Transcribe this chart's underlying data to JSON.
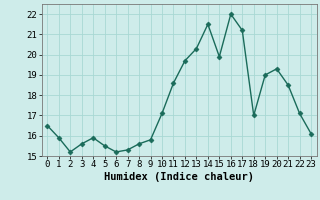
{
  "x": [
    0,
    1,
    2,
    3,
    4,
    5,
    6,
    7,
    8,
    9,
    10,
    11,
    12,
    13,
    14,
    15,
    16,
    17,
    18,
    19,
    20,
    21,
    22,
    23
  ],
  "y": [
    16.5,
    15.9,
    15.2,
    15.6,
    15.9,
    15.5,
    15.2,
    15.3,
    15.6,
    15.8,
    17.1,
    18.6,
    19.7,
    20.3,
    21.5,
    19.9,
    22.0,
    21.2,
    17.0,
    19.0,
    19.3,
    18.5,
    17.1,
    16.1
  ],
  "line_color": "#1a6b5a",
  "marker": "D",
  "marker_size": 2.5,
  "background_color": "#ceecea",
  "grid_color": "#a8d8d4",
  "xlabel": "Humidex (Indice chaleur)",
  "ylim": [
    15,
    22.5
  ],
  "yticks": [
    15,
    16,
    17,
    18,
    19,
    20,
    21,
    22
  ],
  "xticks": [
    0,
    1,
    2,
    3,
    4,
    5,
    6,
    7,
    8,
    9,
    10,
    11,
    12,
    13,
    14,
    15,
    16,
    17,
    18,
    19,
    20,
    21,
    22,
    23
  ],
  "xlabel_fontsize": 7.5,
  "tick_fontsize": 6.5,
  "line_width": 1.0
}
